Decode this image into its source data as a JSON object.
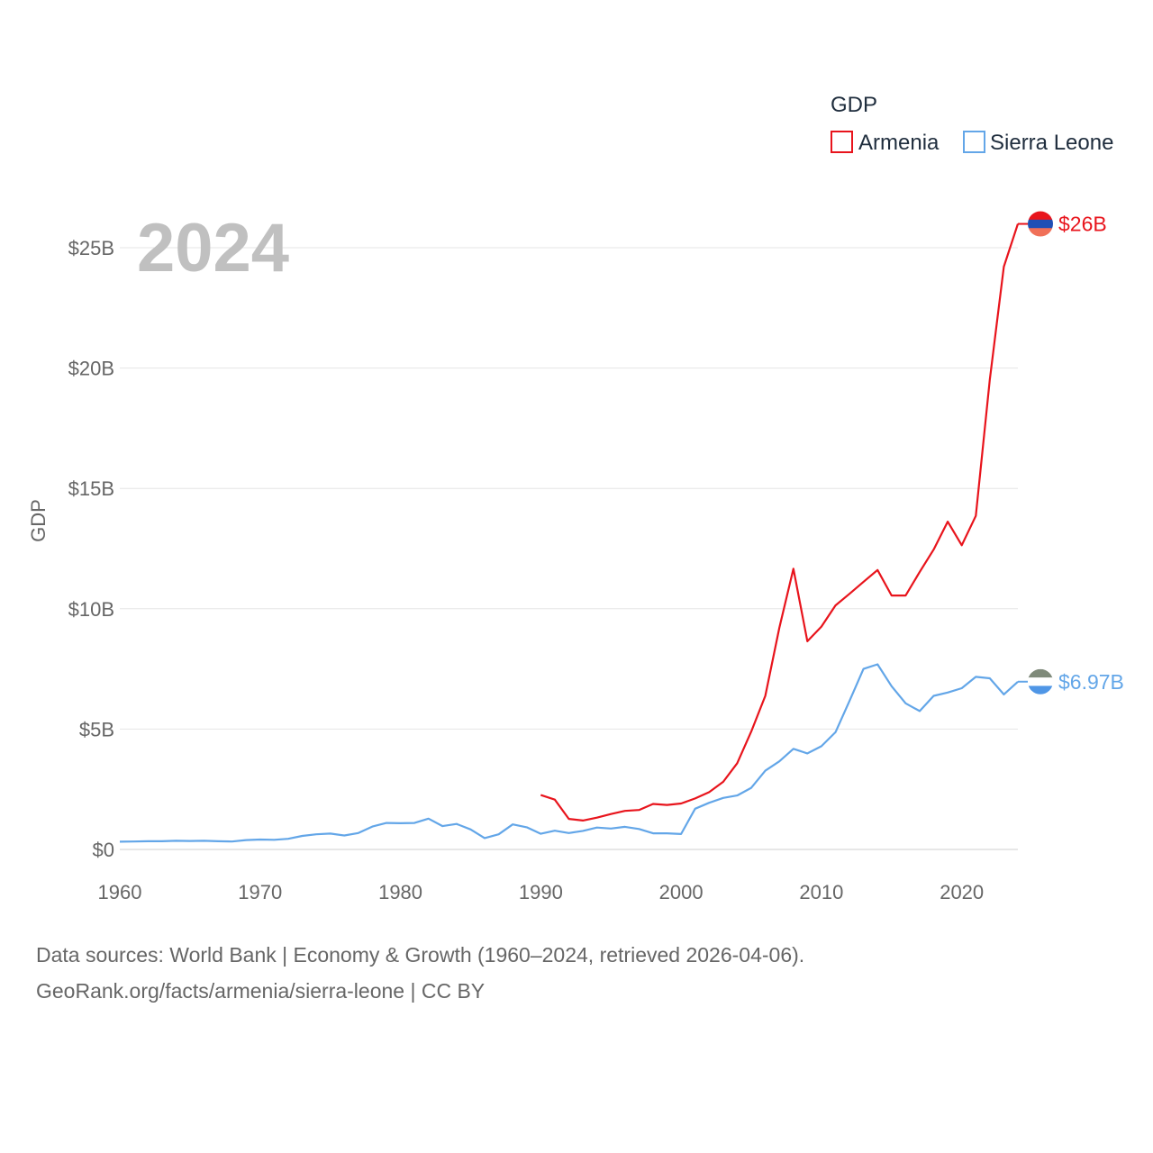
{
  "chart_data": {
    "type": "line",
    "title": "GDP",
    "year_label": "2024",
    "ylabel": "GDP",
    "xlabel": "",
    "xlim": [
      1960,
      2024
    ],
    "ylim": [
      0,
      25
    ],
    "y_ticks": [
      0,
      5,
      10,
      15,
      20,
      25
    ],
    "y_tick_labels": [
      "$0",
      "$5B",
      "$10B",
      "$15B",
      "$20B",
      "$25B"
    ],
    "x_ticks": [
      1960,
      1970,
      1980,
      1990,
      2000,
      2010,
      2020
    ],
    "x_tick_labels": [
      "1960",
      "1970",
      "1980",
      "1990",
      "2000",
      "2010",
      "2020"
    ],
    "grid": true,
    "legend_title": "GDP",
    "legend_position": "top-right",
    "series": [
      {
        "name": "Armenia",
        "color": "#e8141c",
        "end_label": "$26B",
        "flag_icon": "armenia-flag-icon",
        "x": [
          1990,
          1991,
          1992,
          1993,
          1994,
          1995,
          1996,
          1997,
          1998,
          1999,
          2000,
          2001,
          2002,
          2003,
          2004,
          2005,
          2006,
          2007,
          2008,
          2009,
          2010,
          2011,
          2012,
          2013,
          2014,
          2015,
          2016,
          2017,
          2018,
          2019,
          2020,
          2021,
          2022,
          2023,
          2024
        ],
        "values": [
          2.26,
          2.07,
          1.27,
          1.2,
          1.32,
          1.47,
          1.6,
          1.64,
          1.89,
          1.85,
          1.91,
          2.12,
          2.38,
          2.81,
          3.58,
          4.9,
          6.38,
          9.21,
          11.66,
          8.65,
          9.26,
          10.14,
          10.62,
          11.12,
          11.61,
          10.55,
          10.55,
          11.53,
          12.46,
          13.62,
          12.64,
          13.86,
          19.51,
          24.21,
          25.99
        ]
      },
      {
        "name": "Sierra Leone",
        "color": "#63a6e8",
        "end_label": "$6.97B",
        "flag_icon": "sierra-leone-flag-icon",
        "x": [
          1960,
          1961,
          1962,
          1963,
          1964,
          1965,
          1966,
          1967,
          1968,
          1969,
          1970,
          1971,
          1972,
          1973,
          1974,
          1975,
          1976,
          1977,
          1978,
          1979,
          1980,
          1981,
          1982,
          1983,
          1984,
          1985,
          1986,
          1987,
          1988,
          1989,
          1990,
          1991,
          1992,
          1993,
          1994,
          1995,
          1996,
          1997,
          1998,
          1999,
          2000,
          2001,
          2002,
          2003,
          2004,
          2005,
          2006,
          2007,
          2008,
          2009,
          2010,
          2011,
          2012,
          2013,
          2014,
          2015,
          2016,
          2017,
          2018,
          2019,
          2020,
          2021,
          2022,
          2023,
          2024
        ],
        "values": [
          0.32,
          0.33,
          0.34,
          0.34,
          0.36,
          0.35,
          0.36,
          0.34,
          0.33,
          0.39,
          0.41,
          0.4,
          0.44,
          0.56,
          0.63,
          0.66,
          0.58,
          0.68,
          0.95,
          1.1,
          1.09,
          1.1,
          1.28,
          0.97,
          1.06,
          0.83,
          0.47,
          0.63,
          1.04,
          0.92,
          0.65,
          0.78,
          0.68,
          0.77,
          0.91,
          0.87,
          0.94,
          0.85,
          0.67,
          0.67,
          0.64,
          1.69,
          1.94,
          2.14,
          2.24,
          2.56,
          3.27,
          3.66,
          4.18,
          3.99,
          4.29,
          4.87,
          6.17,
          7.5,
          7.69,
          6.78,
          6.07,
          5.75,
          6.38,
          6.52,
          6.7,
          7.17,
          7.11,
          6.44,
          6.97
        ]
      }
    ]
  },
  "source": {
    "line1": "Data sources: World Bank | Economy & Growth (1960–2024, retrieved 2026-04-06).",
    "line2": "GeoRank.org/facts/armenia/sierra-leone | CC BY"
  }
}
